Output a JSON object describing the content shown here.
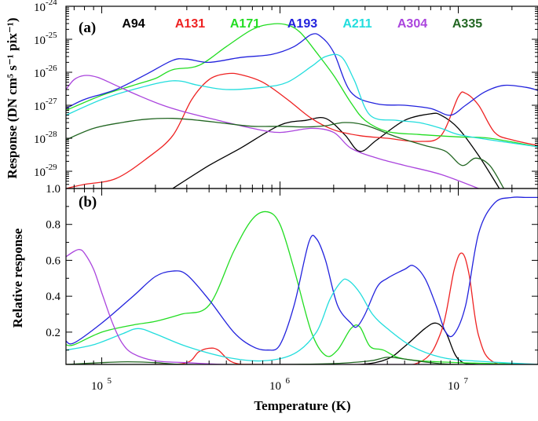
{
  "chart_data": [
    {
      "panel": "(a)",
      "type": "line",
      "y_scale": "log",
      "x_scale": "log",
      "ylabel": "Response (DN cm⁵ s⁻¹ pix⁻¹)",
      "xlim": [
        63000,
        28000000
      ],
      "ylim": [
        3e-30,
        1e-24
      ],
      "y_ticks": [
        {
          "exp": "-24",
          "value": 1e-24
        },
        {
          "exp": "-25",
          "value": 1e-25
        },
        {
          "exp": "-26",
          "value": 1e-26
        },
        {
          "exp": "-27",
          "value": 1e-27
        },
        {
          "exp": "-28",
          "value": 1e-28
        },
        {
          "exp": "-29",
          "value": 1e-29
        }
      ],
      "legend_placement": "top, horizontal inside panel",
      "series": [
        {
          "name": "A94",
          "color": "#000000",
          "x": [
            250000,
            400000,
            600000,
            1000000,
            1400000,
            1800000,
            2300000,
            2800000,
            3500000,
            5000000,
            7000000,
            8000000,
            10000000,
            13000000,
            17000000
          ],
          "y": [
            3e-30,
            1.5e-29,
            5e-29,
            2.5e-28,
            3.5e-28,
            4e-28,
            1.3e-28,
            4e-29,
            9e-29,
            3.5e-28,
            5.5e-28,
            5e-28,
            2e-28,
            3e-29,
            3e-30
          ]
        },
        {
          "name": "A131",
          "color": "#ee2222",
          "x": [
            63000,
            80000,
            120000,
            180000,
            250000,
            320000,
            400000,
            500000,
            600000,
            800000,
            1100000,
            1500000,
            2000000,
            2800000,
            4000000,
            6000000,
            8000000,
            10000000,
            11000000,
            13000000,
            16000000,
            20000000,
            28000000
          ],
          "y": [
            3e-30,
            4e-30,
            6e-30,
            2.5e-29,
            1.2e-28,
            1.5e-27,
            6e-27,
            9e-27,
            8.5e-27,
            5e-27,
            1.5e-27,
            4e-28,
            1.8e-28,
            1.2e-28,
            1e-28,
            8e-29,
            1.2e-28,
            1.8e-27,
            2.3e-27,
            1e-27,
            1.5e-28,
            9e-29,
            6e-29
          ]
        },
        {
          "name": "A171",
          "color": "#22dd22",
          "x": [
            63000,
            100000,
            150000,
            200000,
            250000,
            350000,
            500000,
            700000,
            900000,
            1100000,
            1300000,
            1600000,
            2000000,
            2500000,
            3000000,
            4000000,
            6000000,
            10000000,
            15000000,
            28000000
          ],
          "y": [
            7e-28,
            2e-27,
            4e-27,
            6.5e-27,
            1.2e-26,
            1.6e-26,
            6e-26,
            2e-25,
            2.9e-25,
            2.7e-25,
            1.6e-25,
            4e-26,
            8e-27,
            1.2e-27,
            3.5e-28,
            1.6e-28,
            1.3e-28,
            1.1e-28,
            1e-28,
            5.5e-29
          ]
        },
        {
          "name": "A193",
          "color": "#2222dd",
          "x": [
            63000,
            80000,
            120000,
            180000,
            250000,
            300000,
            400000,
            600000,
            900000,
            1200000,
            1500000,
            1700000,
            2000000,
            2500000,
            3500000,
            5000000,
            7000000,
            9000000,
            11000000,
            14000000,
            18000000,
            24000000,
            28000000
          ],
          "y": [
            8e-28,
            1.5e-27,
            3e-27,
            9e-27,
            2.3e-26,
            2.5e-26,
            2e-26,
            2.8e-26,
            3.5e-26,
            6e-26,
            1.4e-25,
            1.2e-25,
            4e-26,
            2.5e-27,
            1.1e-27,
            1e-27,
            8e-28,
            5e-28,
            1e-27,
            2.5e-27,
            4e-27,
            3.5e-27,
            2.8e-27
          ]
        },
        {
          "name": "A211",
          "color": "#22dddd",
          "x": [
            63000,
            100000,
            150000,
            250000,
            350000,
            500000,
            800000,
            1100000,
            1500000,
            1800000,
            2200000,
            2600000,
            3200000,
            4500000,
            6000000,
            8000000,
            10000000,
            15000000,
            28000000
          ],
          "y": [
            5e-28,
            1.5e-27,
            3e-27,
            5.5e-27,
            4e-27,
            3e-27,
            3.5e-27,
            5e-27,
            1.5e-26,
            3e-26,
            3e-26,
            6e-27,
            5e-28,
            3.5e-28,
            3e-28,
            2e-28,
            1.3e-28,
            9e-29,
            5.5e-29
          ]
        },
        {
          "name": "A304",
          "color": "#aa44dd",
          "x": [
            63000,
            70000,
            80000,
            95000,
            120000,
            160000,
            220000,
            300000,
            450000,
            700000,
            1000000,
            1500000,
            2000000,
            2500000,
            3500000,
            5000000,
            8000000,
            13000000
          ],
          "y": [
            3e-27,
            6e-27,
            8e-27,
            7e-27,
            4e-27,
            2e-27,
            1e-27,
            6e-28,
            3.5e-28,
            2e-28,
            1.5e-28,
            2e-28,
            1.5e-28,
            5e-29,
            2.5e-29,
            1.5e-29,
            8e-30,
            3e-30
          ]
        },
        {
          "name": "A335",
          "color": "#226622",
          "x": [
            63000,
            90000,
            130000,
            180000,
            250000,
            350000,
            500000,
            700000,
            1000000,
            1400000,
            1800000,
            2300000,
            3000000,
            4500000,
            6500000,
            8500000,
            10500000,
            12500000,
            15000000,
            18000000
          ],
          "y": [
            9e-29,
            2e-28,
            3e-28,
            3.8e-28,
            4e-28,
            3.5e-28,
            2.8e-28,
            2.3e-28,
            2.3e-28,
            2.2e-28,
            2.4e-28,
            3e-28,
            2.5e-28,
            1.1e-28,
            6e-29,
            4e-29,
            1.5e-29,
            2.5e-29,
            1.5e-29,
            3e-30
          ]
        }
      ]
    },
    {
      "panel": "(b)",
      "type": "line",
      "x_scale": "log",
      "xlabel": "Temperature (K)",
      "ylabel": "Relative response",
      "xlim": [
        63000,
        28000000
      ],
      "ylim": [
        0.02,
        1.0
      ],
      "x_ticks": [
        {
          "exp": "5",
          "value": 100000
        },
        {
          "exp": "6",
          "value": 1000000
        },
        {
          "exp": "7",
          "value": 10000000
        }
      ],
      "y_ticks": [
        "0.2",
        "0.4",
        "0.6",
        "0.8",
        "1.0"
      ],
      "series": [
        {
          "name": "A94",
          "color": "#000000",
          "x": [
            63000,
            1500000,
            2800000,
            4000000,
            5000000,
            6500000,
            7500000,
            8500000,
            10000000,
            13000000,
            28000000
          ],
          "y": [
            0.02,
            0.02,
            0.02,
            0.05,
            0.12,
            0.22,
            0.25,
            0.2,
            0.05,
            0.02,
            0.02
          ]
        },
        {
          "name": "A131",
          "color": "#ee2222",
          "x": [
            63000,
            200000,
            300000,
            350000,
            400000,
            450000,
            550000,
            800000,
            3000000,
            6000000,
            8000000,
            9500000,
            10500000,
            11500000,
            13000000,
            16000000,
            28000000
          ],
          "y": [
            0.02,
            0.02,
            0.03,
            0.09,
            0.11,
            0.1,
            0.03,
            0.02,
            0.02,
            0.03,
            0.2,
            0.55,
            0.64,
            0.52,
            0.18,
            0.03,
            0.02
          ]
        },
        {
          "name": "A171",
          "color": "#22dd22",
          "x": [
            63000,
            70000,
            100000,
            150000,
            200000,
            280000,
            400000,
            550000,
            700000,
            850000,
            1000000,
            1200000,
            1500000,
            1800000,
            2100000,
            2500000,
            2800000,
            3200000,
            3800000,
            5000000,
            10000000,
            28000000
          ],
          "y": [
            0.13,
            0.13,
            0.2,
            0.24,
            0.26,
            0.3,
            0.35,
            0.65,
            0.83,
            0.87,
            0.8,
            0.55,
            0.2,
            0.07,
            0.1,
            0.22,
            0.23,
            0.12,
            0.1,
            0.05,
            0.03,
            0.02
          ]
        },
        {
          "name": "A193",
          "color": "#2222dd",
          "x": [
            63000,
            70000,
            100000,
            150000,
            200000,
            250000,
            300000,
            400000,
            550000,
            700000,
            850000,
            1000000,
            1200000,
            1450000,
            1600000,
            1800000,
            2100000,
            2500000,
            2700000,
            3000000,
            3500000,
            4000000,
            5000000,
            5600000,
            6500000,
            7500000,
            8500000,
            9500000,
            11000000,
            13000000,
            16000000,
            20000000,
            24000000,
            28000000
          ],
          "y": [
            0.15,
            0.14,
            0.25,
            0.4,
            0.51,
            0.54,
            0.52,
            0.38,
            0.2,
            0.12,
            0.1,
            0.13,
            0.35,
            0.7,
            0.72,
            0.6,
            0.35,
            0.25,
            0.23,
            0.3,
            0.45,
            0.5,
            0.55,
            0.57,
            0.5,
            0.35,
            0.2,
            0.19,
            0.35,
            0.75,
            0.92,
            0.95,
            0.95,
            0.95
          ]
        },
        {
          "name": "A211",
          "color": "#22dddd",
          "x": [
            63000,
            90000,
            130000,
            160000,
            200000,
            300000,
            500000,
            800000,
            1200000,
            1600000,
            1900000,
            2200000,
            2400000,
            2800000,
            3300000,
            4000000,
            5500000,
            8000000,
            12000000,
            28000000
          ],
          "y": [
            0.1,
            0.13,
            0.19,
            0.22,
            0.19,
            0.12,
            0.06,
            0.04,
            0.08,
            0.2,
            0.38,
            0.48,
            0.49,
            0.42,
            0.3,
            0.22,
            0.12,
            0.06,
            0.04,
            0.02
          ]
        },
        {
          "name": "A304",
          "color": "#aa44dd",
          "x": [
            63000,
            70000,
            75000,
            80000,
            90000,
            100000,
            115000,
            130000,
            150000,
            200000,
            300000,
            500000,
            1000000,
            28000000
          ],
          "y": [
            0.62,
            0.65,
            0.66,
            0.64,
            0.55,
            0.42,
            0.25,
            0.14,
            0.08,
            0.04,
            0.03,
            0.02,
            0.02,
            0.02
          ]
        },
        {
          "name": "A335",
          "color": "#226622",
          "x": [
            63000,
            100000,
            140000,
            200000,
            300000,
            1000000,
            2000000,
            3200000,
            4000000,
            5000000,
            7000000,
            10000000,
            28000000
          ],
          "y": [
            0.02,
            0.03,
            0.035,
            0.03,
            0.02,
            0.02,
            0.025,
            0.04,
            0.06,
            0.05,
            0.03,
            0.02,
            0.02
          ]
        }
      ]
    }
  ]
}
